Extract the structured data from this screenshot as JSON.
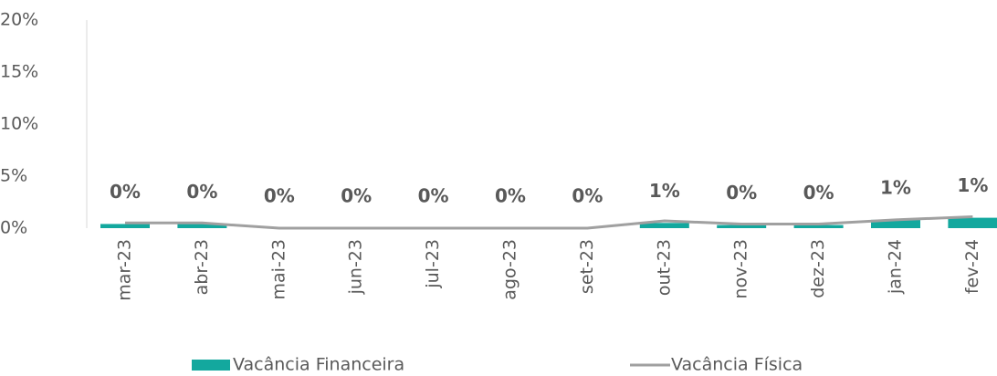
{
  "chart_data": {
    "type": "bar-line",
    "categories": [
      "mar-23",
      "abr-23",
      "mai-23",
      "jun-23",
      "jul-23",
      "ago-23",
      "set-23",
      "out-23",
      "nov-23",
      "dez-23",
      "jan-24",
      "fev-24"
    ],
    "series": [
      {
        "name": "Vacância Financeira",
        "type": "bar",
        "color": "#13a89e",
        "values": [
          0.4,
          0.4,
          0,
          0,
          0,
          0,
          0,
          0.5,
          0.3,
          0.3,
          0.8,
          1.0
        ],
        "value_labels": [
          "0%",
          "0%",
          "0%",
          "0%",
          "0%",
          "0%",
          "0%",
          "1%",
          "0%",
          "0%",
          "1%",
          "1%"
        ]
      },
      {
        "name": "Vacância Física",
        "type": "line",
        "color": "#a0a0a0",
        "values": [
          0.5,
          0.5,
          0,
          0,
          0,
          0,
          0,
          0.7,
          0.4,
          0.4,
          0.8,
          1.1
        ]
      }
    ],
    "ylim": [
      0,
      20
    ],
    "yticks": [
      {
        "value": 0,
        "label": "0%"
      },
      {
        "value": 5,
        "label": "5%"
      },
      {
        "value": 10,
        "label": "10%"
      },
      {
        "value": 15,
        "label": "15%"
      },
      {
        "value": 20,
        "label": "20%"
      }
    ],
    "grid": false
  }
}
